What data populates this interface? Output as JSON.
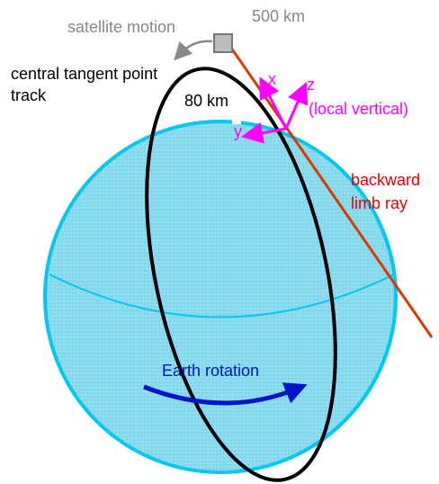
{
  "labels": {
    "satellite_motion": "satellite motion",
    "altitude_satellite": "500 km",
    "track_line1": "central tangent point",
    "track_line2": "track",
    "altitude_tangent": "80 km",
    "axis_x": "x",
    "axis_z": "z",
    "local_vertical": "(local vertical)",
    "axis_y": "y",
    "ray_line1": "backward",
    "ray_line2": "limb ray",
    "earth_rotation": "Earth rotation"
  }
}
